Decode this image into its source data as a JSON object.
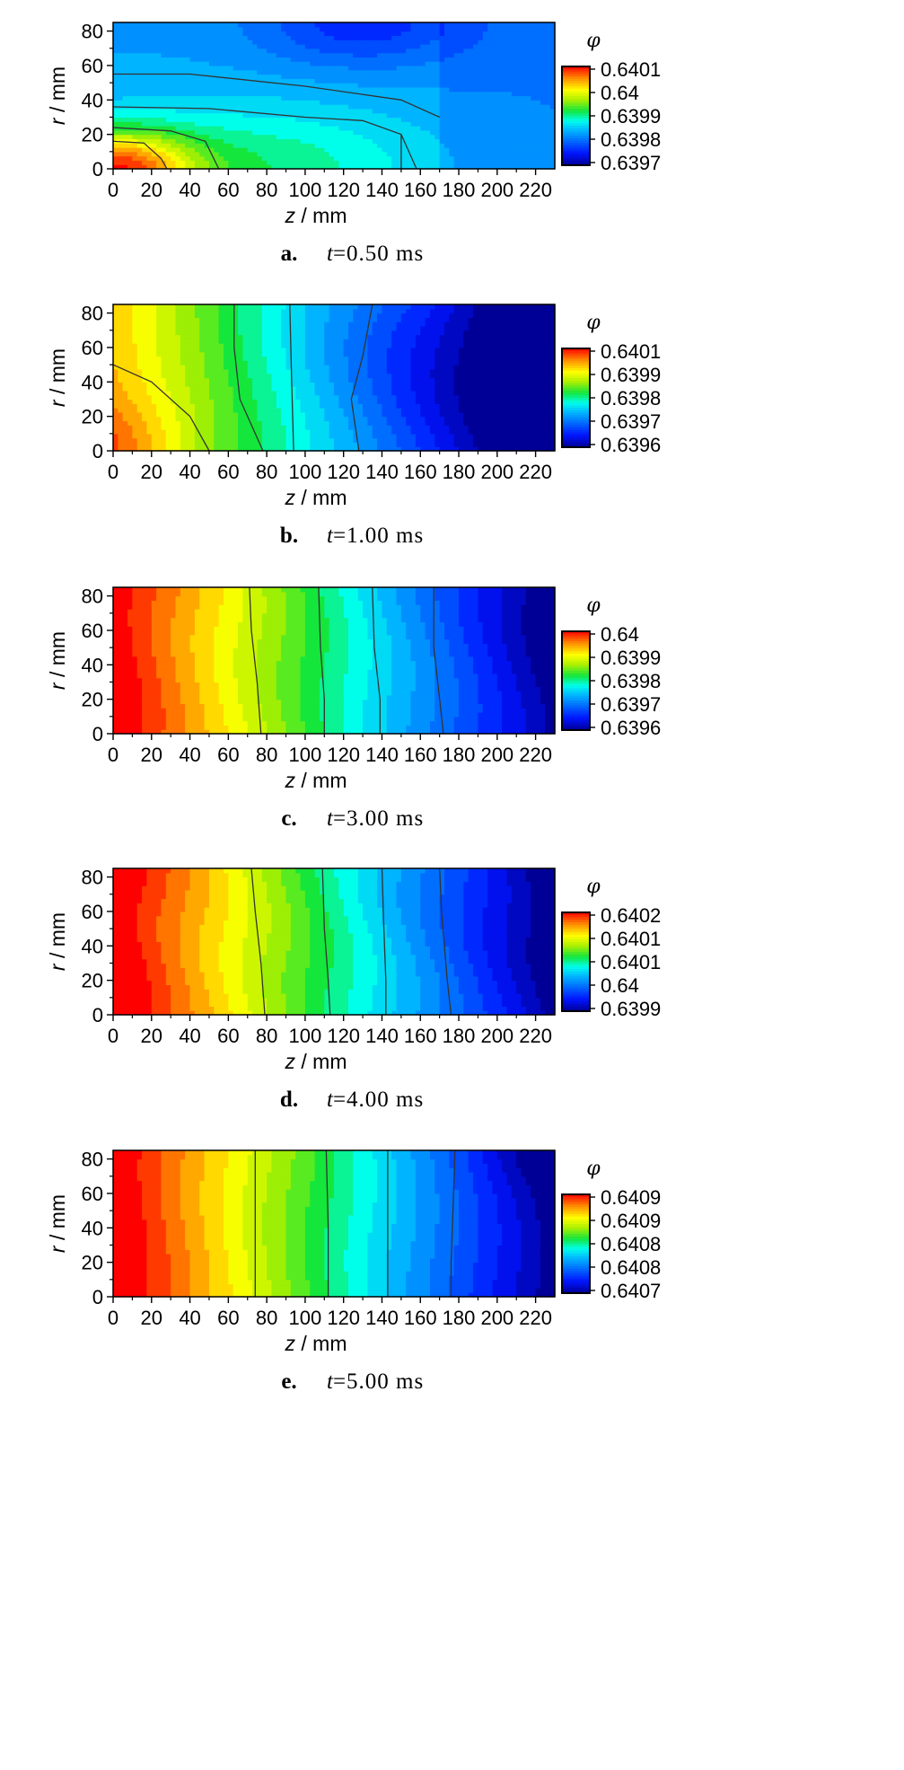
{
  "chart_data": [
    {
      "type": "heatmap",
      "panel_letter": "a.",
      "time_prefix": "t",
      "time_value": "=0.50 ms",
      "xlabel_var": "z",
      "xlabel_unit": " / mm",
      "ylabel_var": "r",
      "ylabel_unit": " / mm",
      "x_ticks": [
        "0",
        "20",
        "40",
        "60",
        "80",
        "100",
        "120",
        "140",
        "160",
        "180",
        "200",
        "220"
      ],
      "y_ticks": [
        "0",
        "20",
        "40",
        "60",
        "80"
      ],
      "xlim": [
        0,
        230
      ],
      "ylim": [
        0,
        85
      ],
      "colorbar_title": "φ",
      "colorbar_ticks": [
        "0.6401",
        "0.64",
        "0.6399",
        "0.6398",
        "0.6397"
      ],
      "colorbar_range": [
        0.6397,
        0.6401
      ],
      "description_pattern": "hot spot at origin (red), green band along axis to z≈150, blue elsewhere, darkest near r≈80 z≈100–160"
    },
    {
      "type": "heatmap",
      "panel_letter": "b.",
      "time_prefix": "t",
      "time_value": "=1.00 ms",
      "xlabel_var": "z",
      "xlabel_unit": " / mm",
      "ylabel_var": "r",
      "ylabel_unit": " / mm",
      "x_ticks": [
        "0",
        "20",
        "40",
        "60",
        "80",
        "100",
        "120",
        "140",
        "160",
        "180",
        "200",
        "220"
      ],
      "y_ticks": [
        "0",
        "20",
        "40",
        "60",
        "80"
      ],
      "xlim": [
        0,
        230
      ],
      "ylim": [
        0,
        85
      ],
      "colorbar_title": "φ",
      "colorbar_ticks": [
        "0.6401",
        "0.6399",
        "0.6398",
        "0.6397",
        "0.6396"
      ],
      "colorbar_range": [
        0.6396,
        0.6401
      ]
    },
    {
      "type": "heatmap",
      "panel_letter": "c.",
      "time_prefix": "t",
      "time_value": "=3.00 ms",
      "xlabel_var": "z",
      "xlabel_unit": " / mm",
      "ylabel_var": "r",
      "ylabel_unit": " / mm",
      "x_ticks": [
        "0",
        "20",
        "40",
        "60",
        "80",
        "100",
        "120",
        "140",
        "160",
        "180",
        "200",
        "220"
      ],
      "y_ticks": [
        "0",
        "20",
        "40",
        "60",
        "80"
      ],
      "xlim": [
        0,
        230
      ],
      "ylim": [
        0,
        85
      ],
      "colorbar_title": "φ",
      "colorbar_ticks": [
        "0.64",
        "0.6399",
        "0.6398",
        "0.6397",
        "0.6396"
      ],
      "colorbar_range": [
        0.6396,
        0.64
      ]
    },
    {
      "type": "heatmap",
      "panel_letter": "d.",
      "time_prefix": "t",
      "time_value": "=4.00 ms",
      "xlabel_var": "z",
      "xlabel_unit": " / mm",
      "ylabel_var": "r",
      "ylabel_unit": " / mm",
      "x_ticks": [
        "0",
        "20",
        "40",
        "60",
        "80",
        "100",
        "120",
        "140",
        "160",
        "180",
        "200",
        "220"
      ],
      "y_ticks": [
        "0",
        "20",
        "40",
        "60",
        "80"
      ],
      "xlim": [
        0,
        230
      ],
      "ylim": [
        0,
        85
      ],
      "colorbar_title": "φ",
      "colorbar_ticks": [
        "0.6402",
        "0.6401",
        "0.6401",
        "0.64",
        "0.6399"
      ],
      "colorbar_range": [
        0.6399,
        0.6402
      ]
    },
    {
      "type": "heatmap",
      "panel_letter": "e.",
      "time_prefix": "t",
      "time_value": "=5.00 ms",
      "xlabel_var": "z",
      "xlabel_unit": " / mm",
      "ylabel_var": "r",
      "ylabel_unit": " / mm",
      "x_ticks": [
        "0",
        "20",
        "40",
        "60",
        "80",
        "100",
        "120",
        "140",
        "160",
        "180",
        "200",
        "220"
      ],
      "y_ticks": [
        "0",
        "20",
        "40",
        "60",
        "80"
      ],
      "xlim": [
        0,
        230
      ],
      "ylim": [
        0,
        85
      ],
      "colorbar_title": "φ",
      "colorbar_ticks": [
        "0.6409",
        "0.6409",
        "0.6408",
        "0.6408",
        "0.6407"
      ],
      "colorbar_range": [
        0.6407,
        0.6409
      ]
    }
  ]
}
